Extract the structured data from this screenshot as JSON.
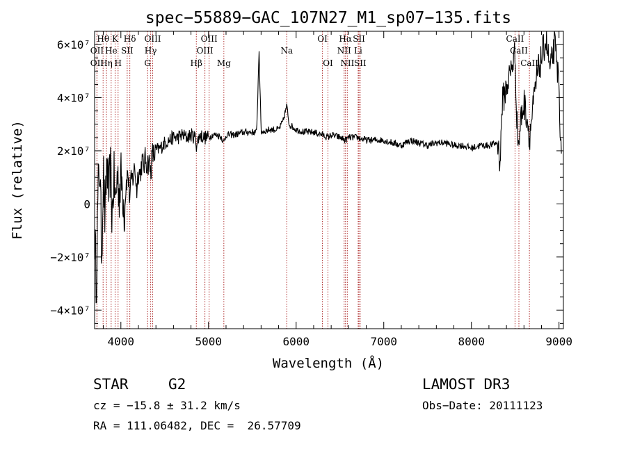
{
  "chart_data": {
    "type": "line",
    "title": "spec−55889−GAC_107N27_M1_sp07−135.fits",
    "xlabel": "Wavelength (Å)",
    "ylabel": "Flux (relative)",
    "xlim": [
      3700,
      9050
    ],
    "ylim": [
      -47000000,
      65000000
    ],
    "x_ticks": [
      4000,
      5000,
      6000,
      7000,
      8000,
      9000
    ],
    "x_tick_labels": [
      "4000",
      "5000",
      "6000",
      "7000",
      "8000",
      "9000"
    ],
    "y_ticks": [
      -40000000,
      -20000000,
      0,
      20000000,
      40000000,
      60000000
    ],
    "y_tick_labels": [
      "−4×10⁷",
      "−2×10⁷",
      "0",
      "2×10⁷",
      "4×10⁷",
      "6×10⁷"
    ],
    "series": [
      {
        "name": "flux",
        "x": [
          3700,
          3720,
          3740,
          3760,
          3780,
          3800,
          3820,
          3840,
          3860,
          3880,
          3900,
          3920,
          3940,
          3960,
          3980,
          4000,
          4020,
          4040,
          4060,
          4080,
          4100,
          4120,
          4140,
          4160,
          4180,
          4200,
          4220,
          4240,
          4260,
          4280,
          4300,
          4320,
          4340,
          4360,
          4380,
          4400,
          4450,
          4500,
          4550,
          4600,
          4650,
          4700,
          4750,
          4800,
          4850,
          4861,
          4900,
          4950,
          5000,
          5050,
          5100,
          5150,
          5175,
          5200,
          5300,
          5400,
          5500,
          5550,
          5577,
          5600,
          5700,
          5800,
          5850,
          5893,
          5920,
          6000,
          6100,
          6200,
          6300,
          6363,
          6400,
          6500,
          6563,
          6600,
          6700,
          6800,
          6900,
          7000,
          7100,
          7200,
          7300,
          7400,
          7500,
          7600,
          7700,
          7800,
          7900,
          8000,
          8100,
          8200,
          8300,
          8330,
          8350,
          8400,
          8450,
          8498,
          8520,
          8542,
          8560,
          8600,
          8640,
          8662,
          8700,
          8750,
          8800,
          8850,
          8900,
          8950,
          9000,
          9030
        ],
        "values": [
          -10000000,
          -30000000,
          5000000,
          15000000,
          -20000000,
          12000000,
          -8000000,
          18000000,
          2000000,
          14000000,
          -5000000,
          10000000,
          0,
          12000000,
          4000000,
          10000000,
          6000000,
          -3000000,
          8000000,
          12000000,
          2000000,
          9000000,
          10000000,
          14000000,
          5000000,
          13000000,
          11000000,
          16000000,
          14000000,
          17000000,
          15000000,
          16000000,
          12000000,
          19000000,
          18000000,
          20000000,
          21000000,
          23000000,
          24000000,
          25000000,
          25000000,
          26000000,
          25000000,
          26000000,
          25000000,
          22000000,
          26000000,
          25000000,
          25000000,
          26000000,
          26000000,
          25000000,
          23000000,
          26000000,
          26000000,
          27000000,
          27000000,
          27000000,
          58000000,
          27000000,
          28000000,
          28000000,
          31000000,
          37000000,
          30000000,
          28000000,
          27000000,
          27000000,
          26000000,
          25000000,
          26000000,
          25000000,
          24000000,
          25000000,
          25000000,
          24000000,
          24000000,
          24000000,
          23000000,
          22000000,
          24000000,
          23000000,
          22000000,
          23000000,
          23000000,
          22000000,
          22000000,
          21000000,
          22000000,
          22000000,
          23000000,
          16000000,
          38000000,
          44000000,
          50000000,
          57000000,
          30000000,
          22000000,
          31000000,
          38000000,
          32000000,
          25000000,
          35000000,
          48000000,
          55000000,
          62000000,
          50000000,
          60000000,
          45000000,
          10000000
        ]
      }
    ],
    "lines": [
      {
        "label": "Hθ",
        "x": 3797,
        "row": 0
      },
      {
        "label": "OII",
        "x": 3727,
        "row": 1
      },
      {
        "label": "OII",
        "x": 3727,
        "row": 2
      },
      {
        "label": "Hη",
        "x": 3835,
        "row": 2
      },
      {
        "label": "He",
        "x": 3889,
        "row": 1
      },
      {
        "label": "K",
        "x": 3934,
        "row": 0
      },
      {
        "label": "H",
        "x": 3968,
        "row": 2
      },
      {
        "label": "SII",
        "x": 4072,
        "row": 1
      },
      {
        "label": "Hδ",
        "x": 4102,
        "row": 0
      },
      {
        "label": "OIII",
        "x": 4363,
        "row": 0
      },
      {
        "label": "Hγ",
        "x": 4340,
        "row": 1
      },
      {
        "label": "G",
        "x": 4305,
        "row": 2
      },
      {
        "label": "Hβ",
        "x": 4861,
        "row": 2
      },
      {
        "label": "OIII",
        "x": 5007,
        "row": 0
      },
      {
        "label": "OIII",
        "x": 4959,
        "row": 1
      },
      {
        "label": "Mg",
        "x": 5175,
        "row": 2
      },
      {
        "label": "Na",
        "x": 5893,
        "row": 1
      },
      {
        "label": "OI",
        "x": 6300,
        "row": 0
      },
      {
        "label": "OI",
        "x": 6363,
        "row": 2
      },
      {
        "label": "Hα",
        "x": 6563,
        "row": 0
      },
      {
        "label": "NII",
        "x": 6548,
        "row": 1
      },
      {
        "label": "NII",
        "x": 6584,
        "row": 2
      },
      {
        "label": "SII",
        "x": 6717,
        "row": 0
      },
      {
        "label": "Li",
        "x": 6708,
        "row": 1
      },
      {
        "label": "SII",
        "x": 6731,
        "row": 2
      },
      {
        "label": "CaII",
        "x": 8498,
        "row": 0
      },
      {
        "label": "CaII",
        "x": 8542,
        "row": 1
      },
      {
        "label": "CaII",
        "x": 8662,
        "row": 2
      }
    ]
  },
  "info": {
    "object_class": "STAR",
    "subclass": "G2",
    "survey": "LAMOST DR3",
    "redshift": "cz = −15.8 ± 31.2 km/s",
    "obs_date": "Obs−Date: 20111123",
    "coordinates": "RA = 111.06482, DEC =  26.57709"
  },
  "colors": {
    "line_marker": "#b03030",
    "spectrum": "#000000",
    "axis": "#000000"
  }
}
